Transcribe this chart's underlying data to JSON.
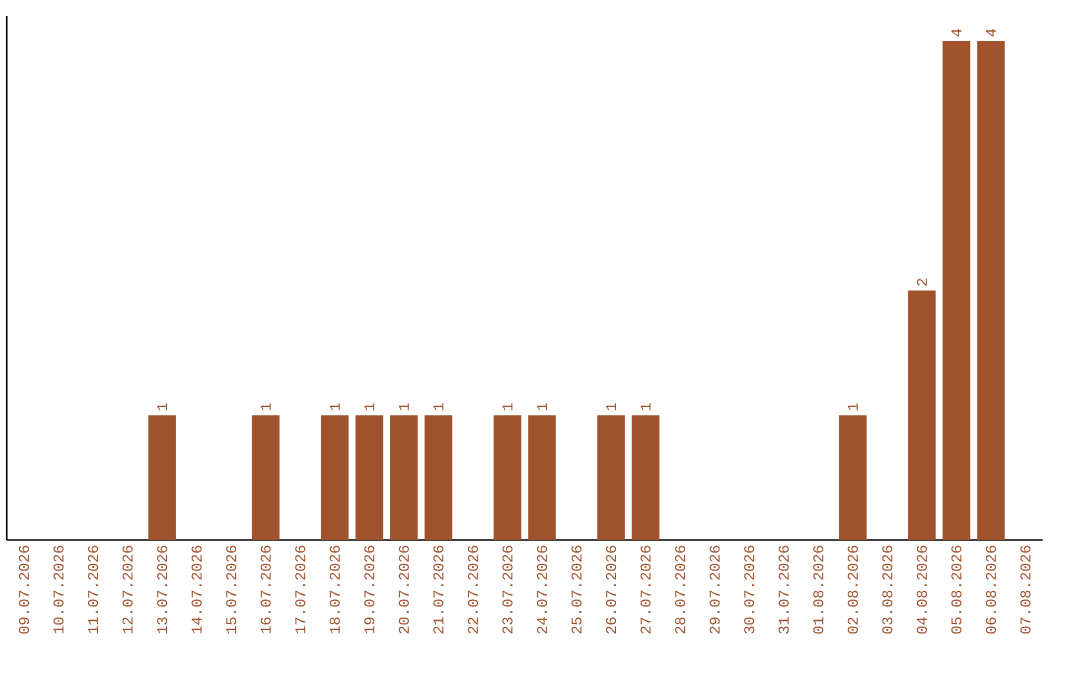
{
  "chart_data": {
    "type": "bar",
    "categories": [
      "09.07.2026",
      "10.07.2026",
      "11.07.2026",
      "12.07.2026",
      "13.07.2026",
      "14.07.2026",
      "15.07.2026",
      "16.07.2026",
      "17.07.2026",
      "18.07.2026",
      "19.07.2026",
      "20.07.2026",
      "21.07.2026",
      "22.07.2026",
      "23.07.2026",
      "24.07.2026",
      "25.07.2026",
      "26.07.2026",
      "27.07.2026",
      "28.07.2026",
      "29.07.2026",
      "30.07.2026",
      "31.07.2026",
      "01.08.2026",
      "02.08.2026",
      "03.08.2026",
      "04.08.2026",
      "05.08.2026",
      "06.08.2026",
      "07.08.2026"
    ],
    "values": [
      0,
      0,
      0,
      0,
      1,
      0,
      0,
      1,
      0,
      1,
      1,
      1,
      1,
      0,
      1,
      1,
      0,
      1,
      1,
      0,
      0,
      0,
      0,
      0,
      1,
      0,
      2,
      4,
      4,
      0
    ],
    "value_labels": [
      null,
      null,
      null,
      null,
      "1",
      null,
      null,
      "1",
      null,
      "1",
      "1",
      "1",
      "1",
      null,
      "1",
      "1",
      null,
      "1",
      "1",
      null,
      null,
      null,
      null,
      null,
      "1",
      null,
      "2",
      "4",
      "4",
      null
    ],
    "color": "#a0522d",
    "tick_labels": "x",
    "grid": false
  }
}
